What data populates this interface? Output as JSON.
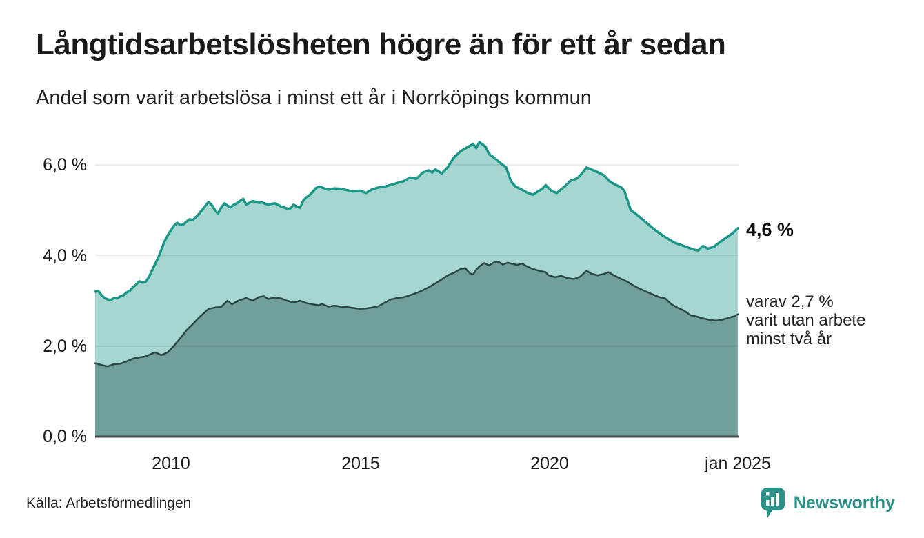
{
  "header": {
    "title": "Långtidsarbetslösheten högre än för ett år sedan",
    "subtitle": "Andel som varit arbetslösa i minst ett år i Norrköpings kommun"
  },
  "annotations": {
    "series1_end_label": "4,6 %",
    "series2_note_line1": "varav 2,7 %",
    "series2_note_line2": "varit utan arbete",
    "series2_note_line3": "minst två år"
  },
  "axes": {
    "y_ticks": [
      {
        "label": "6,0 %",
        "value": 6.0
      },
      {
        "label": "4,0 %",
        "value": 4.0
      },
      {
        "label": "2,0 %",
        "value": 2.0
      },
      {
        "label": "0,0 %",
        "value": 0.0
      }
    ],
    "x_ticks": [
      {
        "label": "2010",
        "year": 2010
      },
      {
        "label": "2015",
        "year": 2015
      },
      {
        "label": "2020",
        "year": 2020
      },
      {
        "label": "jan 2025",
        "year": 2025
      }
    ]
  },
  "footer": {
    "source": "Källa: Arbetsförmedlingen",
    "brand": "Newsworthy"
  },
  "chart_data": {
    "type": "area",
    "title": "Långtidsarbetslösheten högre än för ett år sedan",
    "subtitle": "Andel som varit arbetslösa i minst ett år i Norrköpings kommun",
    "unit": "%",
    "xlim": [
      2008.0,
      2025.04
    ],
    "ylim": [
      0,
      6.6
    ],
    "y_gridlines": [
      2.0,
      4.0,
      6.0
    ],
    "grid": true,
    "legend_position": "right-annotations",
    "colors": {
      "grid": "rgba(0,0,0,0.10)",
      "axis": "#3e4b48",
      "series1_stroke": "#1a9688",
      "series1_fill": "#a5d6d0",
      "series2_stroke": "#2b4642",
      "series2_fill": "#719f99",
      "brand_teal": "#2d9289"
    },
    "series": [
      {
        "name": "Andel arbetslösa minst ett år",
        "end_value": 4.6,
        "points": [
          [
            2008.0,
            3.2
          ],
          [
            2008.08,
            3.22
          ],
          [
            2008.17,
            3.12
          ],
          [
            2008.25,
            3.06
          ],
          [
            2008.33,
            3.03
          ],
          [
            2008.42,
            3.02
          ],
          [
            2008.5,
            3.06
          ],
          [
            2008.58,
            3.05
          ],
          [
            2008.67,
            3.1
          ],
          [
            2008.75,
            3.12
          ],
          [
            2008.83,
            3.18
          ],
          [
            2008.92,
            3.22
          ],
          [
            2009.0,
            3.3
          ],
          [
            2009.08,
            3.35
          ],
          [
            2009.17,
            3.43
          ],
          [
            2009.25,
            3.4
          ],
          [
            2009.33,
            3.41
          ],
          [
            2009.42,
            3.52
          ],
          [
            2009.5,
            3.66
          ],
          [
            2009.58,
            3.8
          ],
          [
            2009.67,
            3.95
          ],
          [
            2009.75,
            4.12
          ],
          [
            2009.83,
            4.3
          ],
          [
            2009.92,
            4.44
          ],
          [
            2010.0,
            4.55
          ],
          [
            2010.08,
            4.65
          ],
          [
            2010.17,
            4.72
          ],
          [
            2010.25,
            4.67
          ],
          [
            2010.33,
            4.68
          ],
          [
            2010.42,
            4.75
          ],
          [
            2010.5,
            4.8
          ],
          [
            2010.58,
            4.78
          ],
          [
            2010.67,
            4.85
          ],
          [
            2010.75,
            4.92
          ],
          [
            2010.83,
            5.0
          ],
          [
            2010.92,
            5.1
          ],
          [
            2011.0,
            5.18
          ],
          [
            2011.08,
            5.12
          ],
          [
            2011.17,
            5.0
          ],
          [
            2011.25,
            4.92
          ],
          [
            2011.33,
            5.05
          ],
          [
            2011.42,
            5.15
          ],
          [
            2011.5,
            5.1
          ],
          [
            2011.58,
            5.06
          ],
          [
            2011.67,
            5.12
          ],
          [
            2011.75,
            5.15
          ],
          [
            2011.83,
            5.2
          ],
          [
            2011.92,
            5.25
          ],
          [
            2012.0,
            5.12
          ],
          [
            2012.08,
            5.16
          ],
          [
            2012.17,
            5.2
          ],
          [
            2012.25,
            5.18
          ],
          [
            2012.33,
            5.16
          ],
          [
            2012.42,
            5.17
          ],
          [
            2012.5,
            5.14
          ],
          [
            2012.58,
            5.12
          ],
          [
            2012.67,
            5.14
          ],
          [
            2012.75,
            5.15
          ],
          [
            2012.83,
            5.12
          ],
          [
            2012.92,
            5.08
          ],
          [
            2013.0,
            5.06
          ],
          [
            2013.08,
            5.03
          ],
          [
            2013.17,
            5.04
          ],
          [
            2013.25,
            5.12
          ],
          [
            2013.33,
            5.08
          ],
          [
            2013.42,
            5.05
          ],
          [
            2013.5,
            5.2
          ],
          [
            2013.58,
            5.28
          ],
          [
            2013.67,
            5.33
          ],
          [
            2013.75,
            5.4
          ],
          [
            2013.83,
            5.48
          ],
          [
            2013.92,
            5.52
          ],
          [
            2014.0,
            5.5
          ],
          [
            2014.17,
            5.45
          ],
          [
            2014.33,
            5.48
          ],
          [
            2014.5,
            5.47
          ],
          [
            2014.67,
            5.44
          ],
          [
            2014.83,
            5.41
          ],
          [
            2015.0,
            5.43
          ],
          [
            2015.17,
            5.38
          ],
          [
            2015.33,
            5.46
          ],
          [
            2015.5,
            5.5
          ],
          [
            2015.67,
            5.52
          ],
          [
            2015.83,
            5.56
          ],
          [
            2016.0,
            5.6
          ],
          [
            2016.17,
            5.64
          ],
          [
            2016.33,
            5.72
          ],
          [
            2016.5,
            5.69
          ],
          [
            2016.67,
            5.83
          ],
          [
            2016.83,
            5.88
          ],
          [
            2016.92,
            5.83
          ],
          [
            2017.0,
            5.9
          ],
          [
            2017.17,
            5.81
          ],
          [
            2017.33,
            5.95
          ],
          [
            2017.5,
            6.17
          ],
          [
            2017.67,
            6.3
          ],
          [
            2017.83,
            6.38
          ],
          [
            2018.0,
            6.46
          ],
          [
            2018.08,
            6.37
          ],
          [
            2018.17,
            6.5
          ],
          [
            2018.33,
            6.4
          ],
          [
            2018.42,
            6.24
          ],
          [
            2018.58,
            6.14
          ],
          [
            2018.75,
            6.02
          ],
          [
            2018.87,
            5.95
          ],
          [
            2019.0,
            5.64
          ],
          [
            2019.12,
            5.52
          ],
          [
            2019.25,
            5.47
          ],
          [
            2019.42,
            5.39
          ],
          [
            2019.58,
            5.34
          ],
          [
            2019.71,
            5.41
          ],
          [
            2019.83,
            5.47
          ],
          [
            2019.92,
            5.55
          ],
          [
            2020.08,
            5.42
          ],
          [
            2020.21,
            5.38
          ],
          [
            2020.42,
            5.52
          ],
          [
            2020.58,
            5.65
          ],
          [
            2020.75,
            5.7
          ],
          [
            2020.87,
            5.8
          ],
          [
            2021.0,
            5.94
          ],
          [
            2021.12,
            5.9
          ],
          [
            2021.29,
            5.84
          ],
          [
            2021.46,
            5.77
          ],
          [
            2021.62,
            5.63
          ],
          [
            2021.79,
            5.55
          ],
          [
            2021.92,
            5.5
          ],
          [
            2022.0,
            5.43
          ],
          [
            2022.17,
            5.0
          ],
          [
            2022.33,
            4.9
          ],
          [
            2022.5,
            4.78
          ],
          [
            2022.67,
            4.66
          ],
          [
            2022.83,
            4.55
          ],
          [
            2023.0,
            4.45
          ],
          [
            2023.17,
            4.36
          ],
          [
            2023.33,
            4.28
          ],
          [
            2023.5,
            4.23
          ],
          [
            2023.67,
            4.18
          ],
          [
            2023.83,
            4.13
          ],
          [
            2023.96,
            4.11
          ],
          [
            2024.08,
            4.21
          ],
          [
            2024.21,
            4.15
          ],
          [
            2024.37,
            4.19
          ],
          [
            2024.54,
            4.3
          ],
          [
            2024.71,
            4.4
          ],
          [
            2024.87,
            4.49
          ],
          [
            2025.0,
            4.6
          ]
        ]
      },
      {
        "name": "varav utan arbete minst två år",
        "end_value": 2.7,
        "points": [
          [
            2008.0,
            1.62
          ],
          [
            2008.17,
            1.58
          ],
          [
            2008.33,
            1.55
          ],
          [
            2008.5,
            1.6
          ],
          [
            2008.67,
            1.61
          ],
          [
            2008.83,
            1.66
          ],
          [
            2009.0,
            1.72
          ],
          [
            2009.17,
            1.75
          ],
          [
            2009.33,
            1.77
          ],
          [
            2009.5,
            1.83
          ],
          [
            2009.58,
            1.86
          ],
          [
            2009.75,
            1.8
          ],
          [
            2009.92,
            1.86
          ],
          [
            2010.08,
            2.0
          ],
          [
            2010.25,
            2.17
          ],
          [
            2010.42,
            2.35
          ],
          [
            2010.58,
            2.48
          ],
          [
            2010.75,
            2.63
          ],
          [
            2010.92,
            2.76
          ],
          [
            2011.0,
            2.82
          ],
          [
            2011.17,
            2.85
          ],
          [
            2011.33,
            2.86
          ],
          [
            2011.5,
            3.0
          ],
          [
            2011.62,
            2.92
          ],
          [
            2011.79,
            3.0
          ],
          [
            2011.92,
            3.04
          ],
          [
            2012.0,
            3.06
          ],
          [
            2012.17,
            3.0
          ],
          [
            2012.33,
            3.08
          ],
          [
            2012.46,
            3.1
          ],
          [
            2012.58,
            3.04
          ],
          [
            2012.75,
            3.07
          ],
          [
            2012.92,
            3.05
          ],
          [
            2013.08,
            3.0
          ],
          [
            2013.25,
            2.96
          ],
          [
            2013.42,
            3.0
          ],
          [
            2013.58,
            2.95
          ],
          [
            2013.75,
            2.92
          ],
          [
            2013.92,
            2.9
          ],
          [
            2014.0,
            2.93
          ],
          [
            2014.17,
            2.87
          ],
          [
            2014.33,
            2.89
          ],
          [
            2014.5,
            2.87
          ],
          [
            2014.67,
            2.86
          ],
          [
            2014.83,
            2.84
          ],
          [
            2015.0,
            2.82
          ],
          [
            2015.17,
            2.83
          ],
          [
            2015.33,
            2.85
          ],
          [
            2015.5,
            2.88
          ],
          [
            2015.67,
            2.96
          ],
          [
            2015.83,
            3.03
          ],
          [
            2016.0,
            3.06
          ],
          [
            2016.17,
            3.08
          ],
          [
            2016.33,
            3.12
          ],
          [
            2016.5,
            3.17
          ],
          [
            2016.67,
            3.23
          ],
          [
            2016.83,
            3.3
          ],
          [
            2017.0,
            3.38
          ],
          [
            2017.17,
            3.47
          ],
          [
            2017.33,
            3.56
          ],
          [
            2017.5,
            3.62
          ],
          [
            2017.67,
            3.7
          ],
          [
            2017.79,
            3.72
          ],
          [
            2017.92,
            3.6
          ],
          [
            2018.0,
            3.58
          ],
          [
            2018.08,
            3.68
          ],
          [
            2018.17,
            3.76
          ],
          [
            2018.29,
            3.83
          ],
          [
            2018.42,
            3.78
          ],
          [
            2018.54,
            3.84
          ],
          [
            2018.67,
            3.86
          ],
          [
            2018.79,
            3.8
          ],
          [
            2018.92,
            3.84
          ],
          [
            2019.0,
            3.82
          ],
          [
            2019.17,
            3.79
          ],
          [
            2019.29,
            3.82
          ],
          [
            2019.42,
            3.76
          ],
          [
            2019.58,
            3.7
          ],
          [
            2019.75,
            3.66
          ],
          [
            2019.92,
            3.63
          ],
          [
            2020.0,
            3.56
          ],
          [
            2020.17,
            3.52
          ],
          [
            2020.33,
            3.55
          ],
          [
            2020.5,
            3.5
          ],
          [
            2020.67,
            3.48
          ],
          [
            2020.83,
            3.53
          ],
          [
            2021.0,
            3.66
          ],
          [
            2021.12,
            3.6
          ],
          [
            2021.29,
            3.56
          ],
          [
            2021.46,
            3.59
          ],
          [
            2021.58,
            3.63
          ],
          [
            2021.75,
            3.55
          ],
          [
            2021.92,
            3.48
          ],
          [
            2022.08,
            3.42
          ],
          [
            2022.25,
            3.33
          ],
          [
            2022.42,
            3.26
          ],
          [
            2022.58,
            3.2
          ],
          [
            2022.75,
            3.14
          ],
          [
            2022.92,
            3.08
          ],
          [
            2023.08,
            3.05
          ],
          [
            2023.25,
            2.92
          ],
          [
            2023.42,
            2.84
          ],
          [
            2023.58,
            2.78
          ],
          [
            2023.75,
            2.68
          ],
          [
            2023.92,
            2.65
          ],
          [
            2024.08,
            2.61
          ],
          [
            2024.25,
            2.58
          ],
          [
            2024.42,
            2.56
          ],
          [
            2024.58,
            2.58
          ],
          [
            2024.75,
            2.62
          ],
          [
            2024.92,
            2.66
          ],
          [
            2025.0,
            2.7
          ]
        ]
      }
    ]
  }
}
